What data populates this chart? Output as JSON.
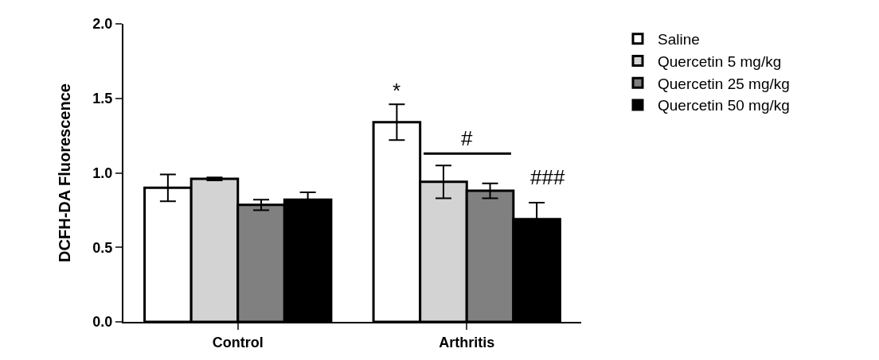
{
  "chart_data": {
    "type": "bar",
    "ylabel": "DCFH-DA Fluorescence",
    "categories": [
      "Control",
      "Arthritis"
    ],
    "series": [
      {
        "name": "Saline",
        "color": "#ffffff",
        "values": [
          0.9,
          1.34
        ],
        "errors": [
          0.09,
          0.12
        ]
      },
      {
        "name": "Quercetin 5 mg/kg",
        "color": "#d3d3d3",
        "values": [
          0.96,
          0.94
        ],
        "errors": [
          0.01,
          0.11
        ]
      },
      {
        "name": "Quercetin 25 mg/kg",
        "color": "#808080",
        "values": [
          0.785,
          0.88
        ],
        "errors": [
          0.035,
          0.05
        ]
      },
      {
        "name": "Quercetin 50 mg/kg",
        "color": "#000000",
        "values": [
          0.82,
          0.69
        ],
        "errors": [
          0.05,
          0.11
        ]
      }
    ],
    "ylim": [
      0,
      2.0
    ],
    "yticks": [
      {
        "value": 0,
        "label": "0.0"
      },
      0.5,
      {
        "value": 1,
        "label": "1.0"
      },
      1.5,
      {
        "value": 2,
        "label": "2.0"
      }
    ],
    "annotations": [
      "*",
      "#",
      "###"
    ],
    "legend": "top right"
  }
}
